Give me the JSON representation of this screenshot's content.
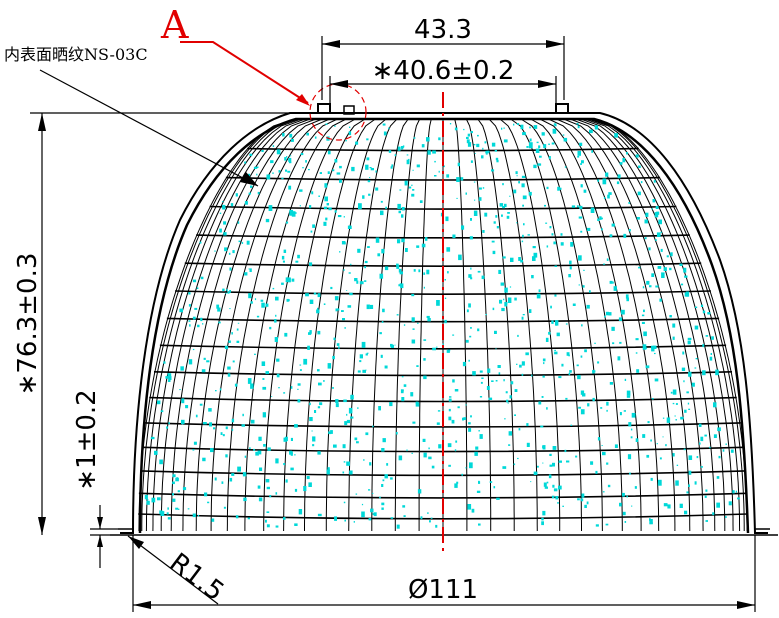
{
  "drawing": {
    "callout_label": "A",
    "surface_note": "内表面晒纹NS-03C",
    "dim_top_width": "43.3",
    "dim_inner_width": "∗40.6±0.2",
    "dim_height": "∗76.3±0.3",
    "dim_flange": "∗1±0.2",
    "dim_radius": "R1.5",
    "dim_diameter": "Ø111",
    "colors": {
      "outline": "#000000",
      "centerline": "#e10000",
      "callout": "#e10000",
      "texture": "#00d8d8"
    }
  }
}
